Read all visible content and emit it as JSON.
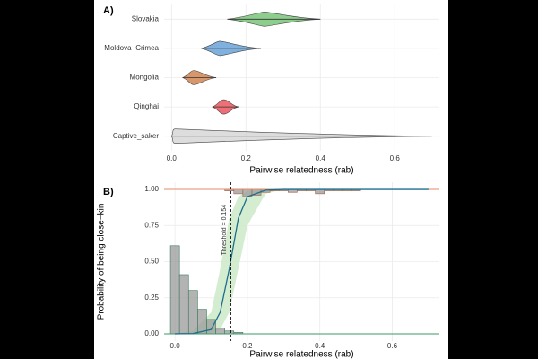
{
  "chart_data": [
    {
      "type": "violin",
      "label": "A)",
      "groups": [
        {
          "name": "Slovakia",
          "color": "#5cb85c",
          "min": 0.15,
          "max": 0.4,
          "center": 0.25
        },
        {
          "name": "Moldova−Crimea",
          "color": "#4a8fd0",
          "min": 0.08,
          "max": 0.24,
          "center": 0.13
        },
        {
          "name": "Mongolia",
          "color": "#c8692c",
          "min": 0.03,
          "max": 0.12,
          "center": 0.06
        },
        {
          "name": "Qinghai",
          "color": "#e8323c",
          "min": 0.11,
          "max": 0.18,
          "center": 0.14
        },
        {
          "name": "Captive_saker",
          "color": "#cfcfcf",
          "min": 0.0,
          "max": 0.7,
          "center": 0.01
        }
      ],
      "x_label": "Pairwise relatedness (rab)",
      "xlim": [
        -0.02,
        0.72
      ],
      "xticks": [
        {
          "value": 0,
          "label": "0.0"
        },
        0.2,
        0.4,
        0.6
      ]
    },
    {
      "type": "histogram",
      "label": "B)",
      "x_label": "Pairwise relatedness (rab)",
      "y_label": "Probability of being close−kin",
      "xlim": [
        -0.03,
        0.73
      ],
      "ylim": [
        -0.05,
        1.05
      ],
      "xticks": [
        {
          "value": 0,
          "label": "0.0"
        },
        0.2,
        0.4,
        0.6
      ],
      "yticks": [
        {
          "value": 0,
          "label": "0.00"
        },
        0.25,
        {
          "value": 0.5,
          "label": "0.50"
        },
        0.75,
        {
          "value": 1,
          "label": "1.00"
        }
      ],
      "bins": [
        -0.0125,
        0.0125,
        0.0375,
        0.0625,
        0.0875,
        0.1125,
        0.1375,
        0.1625,
        0.1875
      ],
      "values": [
        0.61,
        0.41,
        0.3,
        0.17,
        0.1,
        0.04,
        0.02,
        0.01
      ],
      "hist_color": "#999999",
      "top_bins": [
        0.1375,
        0.1625,
        0.1875,
        0.2125,
        0.2375,
        0.2625,
        0.2875,
        0.3125,
        0.3375,
        0.3625,
        0.3875,
        0.4125,
        0.4375,
        0.4625,
        0.4875
      ],
      "top_values": [
        0.01,
        0.03,
        0.05,
        0.04,
        0.02,
        0.01,
        0.01,
        0.02,
        0.01,
        0.01,
        0.03,
        0.01,
        0.01,
        0.01,
        0.01
      ],
      "curve": {
        "color": "#1f6e8c",
        "x": [
          0,
          0.05,
          0.1,
          0.125,
          0.15,
          0.175,
          0.2,
          0.25,
          0.3,
          0.7
        ],
        "values": [
          0,
          0.002,
          0.03,
          0.15,
          0.45,
          0.8,
          0.95,
          0.995,
          1,
          1
        ],
        "lower": [
          0,
          0,
          0.005,
          0.03,
          0.15,
          0.45,
          0.75,
          0.97,
          1,
          1
        ],
        "upper": [
          0,
          0.02,
          0.15,
          0.45,
          0.8,
          0.95,
          0.99,
          1,
          1,
          1
        ],
        "band_color": "#c9e8c4"
      },
      "reference_lines": [
        {
          "value": 1,
          "color": "#e58a6a"
        },
        {
          "value": 0,
          "color": "#3a9a6a"
        }
      ],
      "threshold": {
        "value": 0.154,
        "label": "Threshold = 0.154"
      }
    }
  ]
}
